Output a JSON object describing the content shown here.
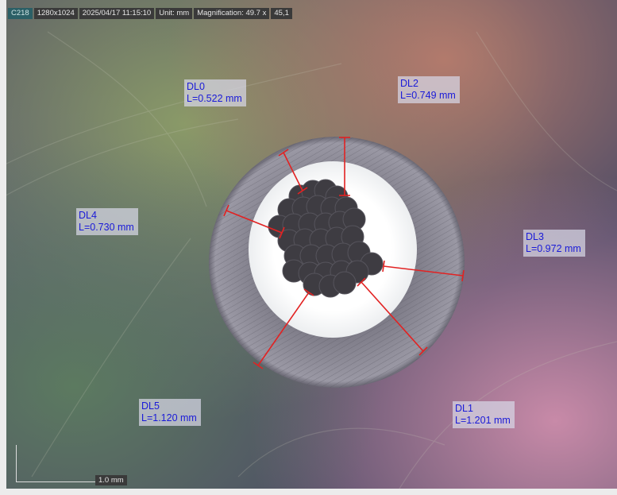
{
  "info_bar": {
    "camera": "C218",
    "resolution": "1280x1024",
    "datetime": "2025/04/17 11:15:10",
    "unit": "Unit: mm",
    "magnification": "Magnification:  49.7 x",
    "extra": "45,1"
  },
  "measurements": [
    {
      "name": "DL0",
      "value": "L=0.522 mm"
    },
    {
      "name": "DL1",
      "value": "L=1.201 mm"
    },
    {
      "name": "DL2",
      "value": "L=0.749 mm"
    },
    {
      "name": "DL3",
      "value": "L=0.972 mm"
    },
    {
      "name": "DL4",
      "value": "L=0.730 mm"
    },
    {
      "name": "DL5",
      "value": "L=1.120 mm"
    }
  ],
  "scale_bar": {
    "label": "1.0 mm"
  },
  "colors": {
    "label_text": "#1a1ad8",
    "measure_line": "#e22222",
    "label_bg": "#d7d7e6"
  }
}
